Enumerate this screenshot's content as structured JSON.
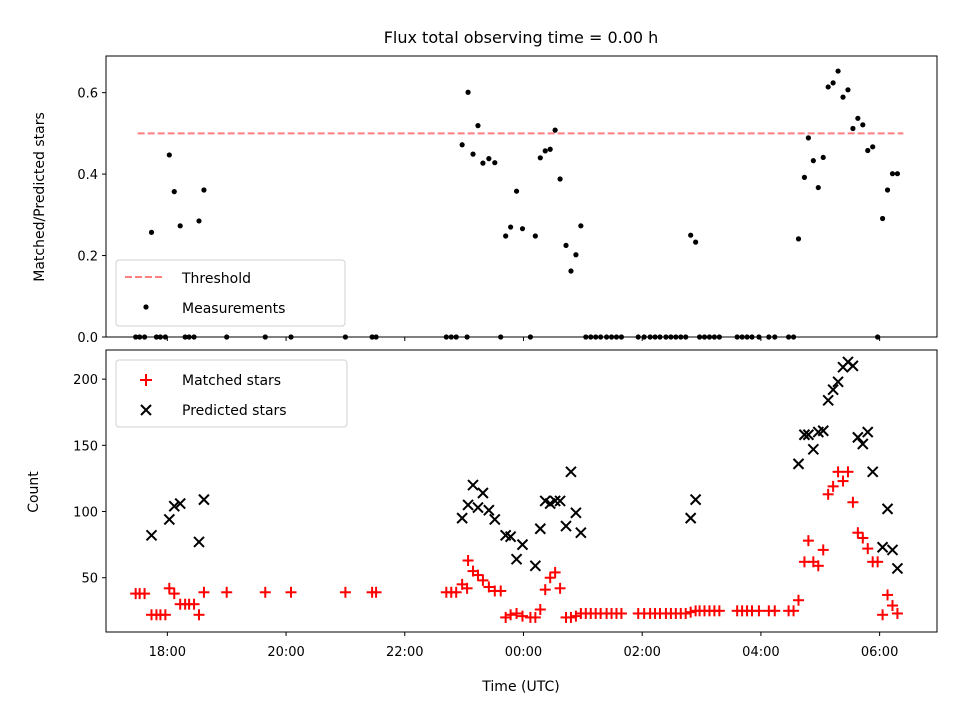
{
  "title": "Flux total observing time = 0.00 h",
  "chart_data": [
    {
      "type": "scatter",
      "ylabel": "Matched/Predicted stars",
      "xlabel": "",
      "ylim": [
        0,
        0.69
      ],
      "yticks": [
        0.0,
        0.2,
        0.4,
        0.6
      ],
      "ytick_labels": [
        "0.0",
        "0.2",
        "0.4",
        "0.6"
      ],
      "grid": false,
      "legend": "lower-left",
      "threshold": {
        "name": "Threshold",
        "value": 0.5,
        "color": "#ff7f7f",
        "x_start": "17:30",
        "x_end": "06:24"
      },
      "series": [
        {
          "name": "Measurements",
          "color": "#000000",
          "points": [
            [
              "17:28",
              0.0
            ],
            [
              "17:32",
              0.0
            ],
            [
              "17:37",
              0.0
            ],
            [
              "17:44",
              0.257
            ],
            [
              "17:49",
              0.0
            ],
            [
              "17:53",
              0.0
            ],
            [
              "17:58",
              0.0
            ],
            [
              "18:02",
              0.447
            ],
            [
              "18:07",
              0.357
            ],
            [
              "18:13",
              0.273
            ],
            [
              "18:18",
              0.0
            ],
            [
              "18:22",
              0.0
            ],
            [
              "18:27",
              0.0
            ],
            [
              "18:32",
              0.285
            ],
            [
              "18:37",
              0.361
            ],
            [
              "19:00",
              0.0
            ],
            [
              "19:39",
              0.0
            ],
            [
              "20:05",
              0.0
            ],
            [
              "21:00",
              0.0
            ],
            [
              "21:27",
              0.0
            ],
            [
              "21:31",
              0.0
            ],
            [
              "22:42",
              0.0
            ],
            [
              "22:47",
              0.0
            ],
            [
              "22:52",
              0.0
            ],
            [
              "22:58",
              0.472
            ],
            [
              "23:03",
              0.0
            ],
            [
              "23:04",
              0.601
            ],
            [
              "23:09",
              0.449
            ],
            [
              "23:14",
              0.519
            ],
            [
              "23:19",
              0.427
            ],
            [
              "23:25",
              0.438
            ],
            [
              "23:31",
              0.428
            ],
            [
              "23:37",
              0.0
            ],
            [
              "23:42",
              0.248
            ],
            [
              "23:47",
              0.27
            ],
            [
              "23:53",
              0.358
            ],
            [
              "23:59",
              0.266
            ],
            [
              "00:07",
              0.0
            ],
            [
              "00:12",
              0.248
            ],
            [
              "00:17",
              0.44
            ],
            [
              "00:22",
              0.457
            ],
            [
              "00:27",
              0.461
            ],
            [
              "00:32",
              0.508
            ],
            [
              "00:37",
              0.388
            ],
            [
              "00:43",
              0.225
            ],
            [
              "00:48",
              0.162
            ],
            [
              "00:53",
              0.202
            ],
            [
              "00:58",
              0.273
            ],
            [
              "01:03",
              0.0
            ],
            [
              "01:08",
              0.0
            ],
            [
              "01:13",
              0.0
            ],
            [
              "01:18",
              0.0
            ],
            [
              "01:24",
              0.0
            ],
            [
              "01:29",
              0.0
            ],
            [
              "01:34",
              0.0
            ],
            [
              "01:39",
              0.0
            ],
            [
              "01:56",
              0.0
            ],
            [
              "02:02",
              0.0
            ],
            [
              "02:08",
              0.0
            ],
            [
              "02:13",
              0.0
            ],
            [
              "02:18",
              0.0
            ],
            [
              "02:24",
              0.0
            ],
            [
              "02:29",
              0.0
            ],
            [
              "02:34",
              0.0
            ],
            [
              "02:39",
              0.0
            ],
            [
              "02:44",
              0.0
            ],
            [
              "02:49",
              0.25
            ],
            [
              "02:54",
              0.233
            ],
            [
              "02:58",
              0.0
            ],
            [
              "03:03",
              0.0
            ],
            [
              "03:08",
              0.0
            ],
            [
              "03:13",
              0.0
            ],
            [
              "03:18",
              0.0
            ],
            [
              "03:36",
              0.0
            ],
            [
              "03:41",
              0.0
            ],
            [
              "03:46",
              0.0
            ],
            [
              "03:51",
              0.0
            ],
            [
              "03:58",
              0.0
            ],
            [
              "04:08",
              0.0
            ],
            [
              "04:14",
              0.0
            ],
            [
              "04:28",
              0.0
            ],
            [
              "04:33",
              0.0
            ],
            [
              "04:38",
              0.241
            ],
            [
              "04:44",
              0.392
            ],
            [
              "04:48",
              0.489
            ],
            [
              "04:53",
              0.433
            ],
            [
              "04:58",
              0.367
            ],
            [
              "05:03",
              0.441
            ],
            [
              "05:08",
              0.614
            ],
            [
              "05:13",
              0.624
            ],
            [
              "05:18",
              0.653
            ],
            [
              "05:23",
              0.589
            ],
            [
              "05:28",
              0.607
            ],
            [
              "05:33",
              0.512
            ],
            [
              "05:38",
              0.537
            ],
            [
              "05:43",
              0.521
            ],
            [
              "05:48",
              0.458
            ],
            [
              "05:53",
              0.467
            ],
            [
              "05:58",
              0.0
            ],
            [
              "06:03",
              0.291
            ],
            [
              "06:08",
              0.361
            ],
            [
              "06:13",
              0.401
            ],
            [
              "06:18",
              0.401
            ]
          ]
        }
      ]
    },
    {
      "type": "scatter",
      "ylabel": "Count",
      "xlabel": "Time (UTC)",
      "ylim": [
        9,
        222
      ],
      "yticks": [
        50,
        100,
        150,
        200
      ],
      "ytick_labels": [
        "50",
        "100",
        "150",
        "200"
      ],
      "xlim": [
        "16:58",
        "06:58"
      ],
      "xticks": [
        "18:00",
        "20:00",
        "22:00",
        "00:00",
        "02:00",
        "04:00",
        "06:00"
      ],
      "xtick_labels": [
        "18:00",
        "20:00",
        "22:00",
        "00:00",
        "02:00",
        "04:00",
        "06:00"
      ],
      "grid": false,
      "legend": "top-left",
      "series": [
        {
          "name": "Matched stars",
          "marker": "plus",
          "color": "#ff0000",
          "points": [
            [
              "17:28",
              38
            ],
            [
              "17:32",
              38
            ],
            [
              "17:37",
              38
            ],
            [
              "17:44",
              22
            ],
            [
              "17:49",
              22
            ],
            [
              "17:53",
              22
            ],
            [
              "17:58",
              22
            ],
            [
              "18:02",
              42
            ],
            [
              "18:07",
              38
            ],
            [
              "18:13",
              30
            ],
            [
              "18:18",
              30
            ],
            [
              "18:22",
              30
            ],
            [
              "18:27",
              30
            ],
            [
              "18:32",
              22
            ],
            [
              "18:37",
              39
            ],
            [
              "19:00",
              39
            ],
            [
              "19:39",
              39
            ],
            [
              "20:05",
              39
            ],
            [
              "21:00",
              39
            ],
            [
              "21:27",
              39
            ],
            [
              "21:31",
              39
            ],
            [
              "22:42",
              39
            ],
            [
              "22:47",
              39
            ],
            [
              "22:52",
              39
            ],
            [
              "22:58",
              45
            ],
            [
              "23:03",
              42
            ],
            [
              "23:04",
              63
            ],
            [
              "23:09",
              55
            ],
            [
              "23:14",
              52
            ],
            [
              "23:19",
              48
            ],
            [
              "23:25",
              43
            ],
            [
              "23:31",
              40
            ],
            [
              "23:37",
              40
            ],
            [
              "23:42",
              20
            ],
            [
              "23:47",
              22
            ],
            [
              "23:53",
              23
            ],
            [
              "23:59",
              21
            ],
            [
              "00:07",
              20
            ],
            [
              "00:12",
              20
            ],
            [
              "00:17",
              26
            ],
            [
              "00:22",
              41
            ],
            [
              "00:27",
              50
            ],
            [
              "00:32",
              54
            ],
            [
              "00:37",
              42
            ],
            [
              "00:43",
              20
            ],
            [
              "00:48",
              20
            ],
            [
              "00:53",
              21
            ],
            [
              "00:58",
              23
            ],
            [
              "01:03",
              23
            ],
            [
              "01:08",
              23
            ],
            [
              "01:13",
              23
            ],
            [
              "01:18",
              23
            ],
            [
              "01:24",
              23
            ],
            [
              "01:29",
              23
            ],
            [
              "01:34",
              23
            ],
            [
              "01:39",
              23
            ],
            [
              "01:56",
              23
            ],
            [
              "02:02",
              23
            ],
            [
              "02:08",
              23
            ],
            [
              "02:13",
              23
            ],
            [
              "02:18",
              23
            ],
            [
              "02:24",
              23
            ],
            [
              "02:29",
              23
            ],
            [
              "02:34",
              23
            ],
            [
              "02:39",
              23
            ],
            [
              "02:44",
              23
            ],
            [
              "02:49",
              24
            ],
            [
              "02:54",
              25
            ],
            [
              "02:58",
              25
            ],
            [
              "03:03",
              25
            ],
            [
              "03:08",
              25
            ],
            [
              "03:13",
              25
            ],
            [
              "03:18",
              25
            ],
            [
              "03:36",
              25
            ],
            [
              "03:41",
              25
            ],
            [
              "03:46",
              25
            ],
            [
              "03:51",
              25
            ],
            [
              "03:58",
              25
            ],
            [
              "04:08",
              25
            ],
            [
              "04:14",
              25
            ],
            [
              "04:28",
              25
            ],
            [
              "04:33",
              25
            ],
            [
              "04:38",
              33
            ],
            [
              "04:44",
              62
            ],
            [
              "04:48",
              78
            ],
            [
              "04:53",
              62
            ],
            [
              "04:58",
              59
            ],
            [
              "05:03",
              71
            ],
            [
              "05:08",
              113
            ],
            [
              "05:13",
              119
            ],
            [
              "05:18",
              130
            ],
            [
              "05:23",
              123
            ],
            [
              "05:28",
              130
            ],
            [
              "05:33",
              107
            ],
            [
              "05:38",
              84
            ],
            [
              "05:43",
              80
            ],
            [
              "05:48",
              72
            ],
            [
              "05:53",
              62
            ],
            [
              "05:58",
              62
            ],
            [
              "06:03",
              22
            ],
            [
              "06:08",
              37
            ],
            [
              "06:13",
              29
            ],
            [
              "06:18",
              23
            ]
          ]
        },
        {
          "name": "Predicted stars",
          "marker": "x",
          "color": "#000000",
          "points": [
            [
              "17:44",
              82
            ],
            [
              "18:02",
              94
            ],
            [
              "18:07",
              104
            ],
            [
              "18:13",
              106
            ],
            [
              "18:32",
              77
            ],
            [
              "18:37",
              109
            ],
            [
              "22:58",
              95
            ],
            [
              "23:04",
              105
            ],
            [
              "23:09",
              120
            ],
            [
              "23:14",
              103
            ],
            [
              "23:19",
              114
            ],
            [
              "23:25",
              101
            ],
            [
              "23:31",
              94
            ],
            [
              "23:42",
              82
            ],
            [
              "23:47",
              81
            ],
            [
              "23:53",
              64
            ],
            [
              "23:59",
              75
            ],
            [
              "00:12",
              59
            ],
            [
              "00:17",
              87
            ],
            [
              "00:22",
              108
            ],
            [
              "00:27",
              106
            ],
            [
              "00:32",
              108
            ],
            [
              "00:37",
              108
            ],
            [
              "00:43",
              89
            ],
            [
              "00:48",
              130
            ],
            [
              "00:53",
              99
            ],
            [
              "00:58",
              84
            ],
            [
              "02:49",
              95
            ],
            [
              "02:54",
              109
            ],
            [
              "04:38",
              136
            ],
            [
              "04:44",
              158
            ],
            [
              "04:48",
              158
            ],
            [
              "04:53",
              147
            ],
            [
              "04:58",
              160
            ],
            [
              "05:03",
              161
            ],
            [
              "05:08",
              184
            ],
            [
              "05:13",
              192
            ],
            [
              "05:18",
              198
            ],
            [
              "05:23",
              209
            ],
            [
              "05:28",
              213
            ],
            [
              "05:33",
              210
            ],
            [
              "05:38",
              156
            ],
            [
              "05:43",
              151
            ],
            [
              "05:48",
              160
            ],
            [
              "05:53",
              130
            ],
            [
              "06:03",
              73
            ],
            [
              "06:08",
              102
            ],
            [
              "06:13",
              71
            ],
            [
              "06:18",
              57
            ]
          ]
        }
      ]
    }
  ]
}
